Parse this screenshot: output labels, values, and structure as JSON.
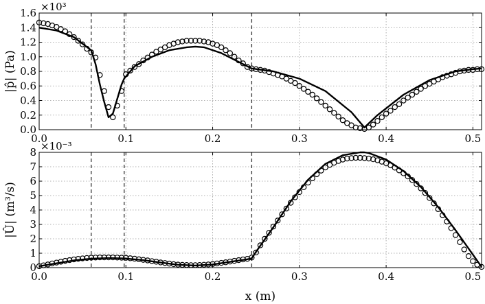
{
  "chart_data": [
    {
      "type": "line",
      "ylabel": "|p̂| (Pa)",
      "multiplier": "×10³",
      "xlim": [
        0.0,
        0.51
      ],
      "ylim": [
        0.0,
        1.6
      ],
      "xticks": [
        "0.0",
        "0.1",
        "0.2",
        "0.3",
        "0.4",
        "0.5"
      ],
      "yticks": [
        "0.0",
        "0.2",
        "0.4",
        "0.6",
        "0.8",
        "1.0",
        "1.2",
        "1.4",
        "1.6"
      ],
      "grid": true,
      "vlines": [
        0.06,
        0.098,
        0.245
      ],
      "series": [
        {
          "style": "solid-line",
          "x": [
            0.0,
            0.02,
            0.04,
            0.06,
            0.065,
            0.07,
            0.075,
            0.08,
            0.085,
            0.09,
            0.095,
            0.098,
            0.11,
            0.13,
            0.15,
            0.17,
            0.18,
            0.19,
            0.21,
            0.23,
            0.245,
            0.27,
            0.3,
            0.33,
            0.36,
            0.375,
            0.39,
            0.42,
            0.45,
            0.48,
            0.5,
            0.51
          ],
          "y": [
            1.4,
            1.36,
            1.27,
            1.09,
            0.9,
            0.62,
            0.38,
            0.17,
            0.22,
            0.42,
            0.62,
            0.7,
            0.87,
            1.0,
            1.09,
            1.13,
            1.14,
            1.13,
            1.05,
            0.93,
            0.84,
            0.8,
            0.7,
            0.53,
            0.24,
            0.03,
            0.2,
            0.48,
            0.68,
            0.8,
            0.83,
            0.84
          ]
        },
        {
          "style": "open-circles",
          "x": [
            0.0,
            0.005,
            0.01,
            0.015,
            0.02,
            0.025,
            0.03,
            0.035,
            0.04,
            0.045,
            0.05,
            0.055,
            0.06,
            0.065,
            0.07,
            0.075,
            0.08,
            0.085,
            0.09,
            0.095,
            0.1,
            0.105,
            0.11,
            0.115,
            0.12,
            0.125,
            0.13,
            0.135,
            0.14,
            0.145,
            0.15,
            0.155,
            0.16,
            0.165,
            0.17,
            0.175,
            0.18,
            0.185,
            0.19,
            0.195,
            0.2,
            0.205,
            0.21,
            0.215,
            0.22,
            0.225,
            0.23,
            0.235,
            0.24,
            0.245,
            0.25,
            0.255,
            0.26,
            0.265,
            0.27,
            0.275,
            0.28,
            0.285,
            0.29,
            0.295,
            0.3,
            0.305,
            0.31,
            0.315,
            0.32,
            0.325,
            0.33,
            0.335,
            0.34,
            0.345,
            0.35,
            0.355,
            0.36,
            0.365,
            0.37,
            0.375,
            0.38,
            0.385,
            0.39,
            0.395,
            0.4,
            0.405,
            0.41,
            0.415,
            0.42,
            0.425,
            0.43,
            0.435,
            0.44,
            0.445,
            0.45,
            0.455,
            0.46,
            0.465,
            0.47,
            0.475,
            0.48,
            0.485,
            0.49,
            0.495,
            0.5,
            0.505,
            0.51
          ],
          "y": [
            1.47,
            1.46,
            1.45,
            1.43,
            1.41,
            1.38,
            1.35,
            1.31,
            1.27,
            1.22,
            1.17,
            1.11,
            1.06,
            0.99,
            0.75,
            0.53,
            0.31,
            0.17,
            0.33,
            0.53,
            0.76,
            0.81,
            0.86,
            0.9,
            0.95,
            0.99,
            1.03,
            1.07,
            1.1,
            1.13,
            1.16,
            1.18,
            1.2,
            1.21,
            1.22,
            1.22,
            1.22,
            1.22,
            1.21,
            1.2,
            1.18,
            1.16,
            1.13,
            1.09,
            1.05,
            1.0,
            0.95,
            0.91,
            0.86,
            0.84,
            0.83,
            0.82,
            0.81,
            0.79,
            0.77,
            0.75,
            0.73,
            0.7,
            0.67,
            0.64,
            0.6,
            0.56,
            0.52,
            0.48,
            0.43,
            0.38,
            0.33,
            0.28,
            0.23,
            0.18,
            0.13,
            0.09,
            0.06,
            0.03,
            0.02,
            0.01,
            0.03,
            0.07,
            0.12,
            0.17,
            0.22,
            0.26,
            0.31,
            0.35,
            0.4,
            0.44,
            0.48,
            0.52,
            0.56,
            0.6,
            0.63,
            0.66,
            0.69,
            0.72,
            0.74,
            0.76,
            0.78,
            0.8,
            0.81,
            0.82,
            0.82,
            0.83,
            0.83
          ]
        }
      ]
    },
    {
      "type": "line",
      "ylabel": "|Û| (m³/s)",
      "xlabel": "x (m)",
      "multiplier": "×10⁻³",
      "xlim": [
        0.0,
        0.51
      ],
      "ylim": [
        0,
        8
      ],
      "xticks": [
        "0.0",
        "0.1",
        "0.2",
        "0.3",
        "0.4",
        "0.5"
      ],
      "yticks": [
        "0",
        "1",
        "2",
        "3",
        "4",
        "5",
        "6",
        "7",
        "8"
      ],
      "grid": true,
      "vlines": [
        0.06,
        0.098,
        0.245
      ],
      "series": [
        {
          "style": "solid-line",
          "x": [
            0.0,
            0.02,
            0.04,
            0.06,
            0.08,
            0.098,
            0.12,
            0.14,
            0.16,
            0.18,
            0.2,
            0.22,
            0.24,
            0.245,
            0.25,
            0.27,
            0.29,
            0.31,
            0.33,
            0.35,
            0.37,
            0.375,
            0.38,
            0.4,
            0.42,
            0.44,
            0.46,
            0.48,
            0.5,
            0.51
          ],
          "y": [
            0.1,
            0.3,
            0.5,
            0.62,
            0.66,
            0.64,
            0.52,
            0.35,
            0.2,
            0.15,
            0.22,
            0.4,
            0.58,
            0.65,
            1.1,
            2.8,
            4.6,
            6.1,
            7.2,
            7.8,
            8.0,
            8.0,
            7.95,
            7.5,
            6.7,
            5.6,
            4.2,
            2.6,
            0.9,
            0.05
          ]
        },
        {
          "style": "open-circles",
          "x": [
            0.0,
            0.005,
            0.01,
            0.015,
            0.02,
            0.025,
            0.03,
            0.035,
            0.04,
            0.045,
            0.05,
            0.055,
            0.06,
            0.065,
            0.07,
            0.075,
            0.08,
            0.085,
            0.09,
            0.095,
            0.1,
            0.105,
            0.11,
            0.115,
            0.12,
            0.125,
            0.13,
            0.135,
            0.14,
            0.145,
            0.15,
            0.155,
            0.16,
            0.165,
            0.17,
            0.175,
            0.18,
            0.185,
            0.19,
            0.195,
            0.2,
            0.205,
            0.21,
            0.215,
            0.22,
            0.225,
            0.23,
            0.235,
            0.24,
            0.245,
            0.25,
            0.255,
            0.26,
            0.265,
            0.27,
            0.275,
            0.28,
            0.285,
            0.29,
            0.295,
            0.3,
            0.305,
            0.31,
            0.315,
            0.32,
            0.325,
            0.33,
            0.335,
            0.34,
            0.345,
            0.35,
            0.355,
            0.36,
            0.365,
            0.37,
            0.375,
            0.38,
            0.385,
            0.39,
            0.395,
            0.4,
            0.405,
            0.41,
            0.415,
            0.42,
            0.425,
            0.43,
            0.435,
            0.44,
            0.445,
            0.45,
            0.455,
            0.46,
            0.465,
            0.47,
            0.475,
            0.48,
            0.485,
            0.49,
            0.495,
            0.5,
            0.505,
            0.51
          ],
          "y": [
            0.1,
            0.16,
            0.22,
            0.29,
            0.35,
            0.41,
            0.47,
            0.52,
            0.57,
            0.61,
            0.64,
            0.67,
            0.69,
            0.7,
            0.71,
            0.71,
            0.71,
            0.71,
            0.7,
            0.69,
            0.68,
            0.65,
            0.62,
            0.58,
            0.54,
            0.5,
            0.45,
            0.41,
            0.36,
            0.32,
            0.28,
            0.24,
            0.21,
            0.19,
            0.18,
            0.17,
            0.17,
            0.18,
            0.2,
            0.22,
            0.25,
            0.29,
            0.33,
            0.37,
            0.42,
            0.47,
            0.52,
            0.57,
            0.61,
            0.7,
            1.05,
            1.55,
            2.0,
            2.42,
            2.85,
            3.27,
            3.7,
            4.1,
            4.5,
            4.88,
            5.24,
            5.58,
            5.9,
            6.2,
            6.48,
            6.73,
            6.95,
            7.13,
            7.28,
            7.4,
            7.5,
            7.57,
            7.6,
            7.62,
            7.62,
            7.6,
            7.57,
            7.52,
            7.45,
            7.35,
            7.24,
            7.1,
            6.94,
            6.75,
            6.55,
            6.33,
            6.08,
            5.8,
            5.5,
            5.18,
            4.83,
            4.46,
            4.06,
            3.64,
            3.2,
            2.74,
            2.26,
            1.77,
            1.26,
            0.8,
            0.45,
            0.2,
            0.05
          ]
        }
      ]
    }
  ]
}
